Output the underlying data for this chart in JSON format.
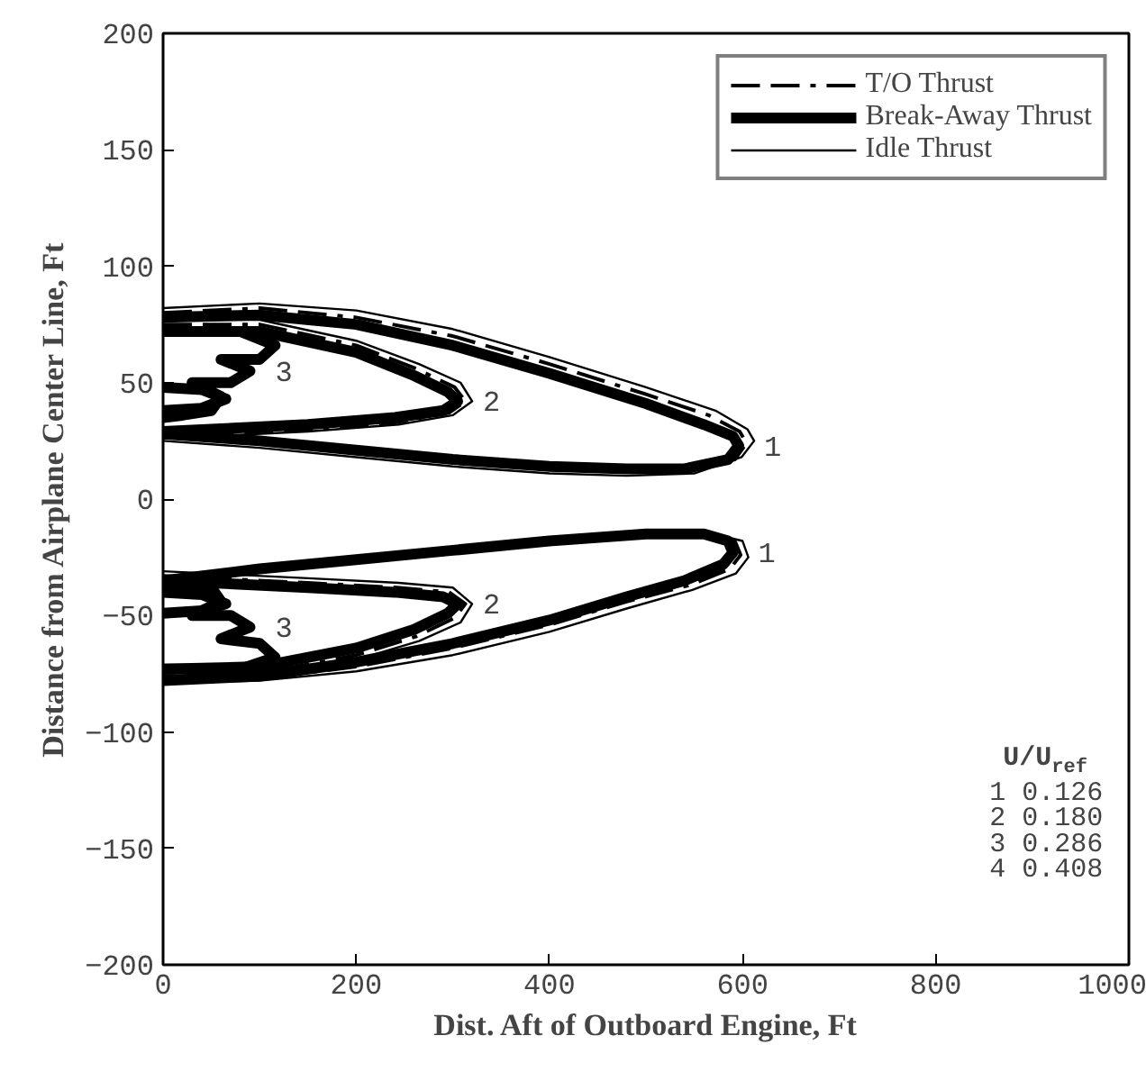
{
  "chart_data": {
    "type": "line",
    "xlabel": "Dist. Aft of Outboard Engine, Ft",
    "ylabel": "Distance from Airplane Center Line, Ft",
    "xlim": [
      0,
      1000
    ],
    "xticks": [
      0,
      200,
      400,
      600,
      800,
      1000
    ],
    "ylim": [
      -200,
      200
    ],
    "yticks": [
      -200,
      -150,
      -100,
      -50,
      0,
      50,
      100,
      150,
      200
    ],
    "grid": false,
    "legend": "top right",
    "series": [
      {
        "name": "T/O Thrust",
        "color": "#000000",
        "line_style": "dashed",
        "x": [
          0,
          100,
          200,
          300,
          400,
          500,
          565,
          597,
          604,
          592,
          545,
          480,
          400,
          300,
          200,
          100,
          0
        ],
        "values": [
          80,
          82,
          78,
          70,
          58,
          45,
          36,
          29,
          24,
          17,
          12,
          12,
          13,
          16,
          20,
          24,
          27
        ]
      },
      {
        "color": "#000000",
        "line_style": "dashed",
        "x": [
          0,
          100,
          200,
          300,
          400,
          500,
          565,
          592,
          598,
          587,
          545,
          480,
          400,
          300,
          200,
          100,
          0
        ],
        "values": [
          -35,
          -30,
          -26,
          -22,
          -18,
          -15,
          -15,
          -18,
          -24,
          -30,
          -37,
          -44,
          -54,
          -64,
          -72,
          -77,
          -78
        ]
      },
      {
        "color": "#000000",
        "line_style": "dashed",
        "x": [
          0,
          100,
          200,
          262,
          302,
          313,
          296,
          242,
          150,
          50,
          0
        ],
        "values": [
          75,
          75,
          66,
          56,
          48,
          42,
          37,
          33,
          30,
          28,
          27
        ]
      },
      {
        "color": "#000000",
        "line_style": "dashed",
        "x": [
          0,
          50,
          150,
          242,
          296,
          313,
          302,
          262,
          200,
          100,
          0
        ],
        "values": [
          -33,
          -34,
          -36,
          -38,
          -40,
          -45,
          -51,
          -59,
          -67,
          -75,
          -76
        ]
      },
      {
        "name": "Break-Away Thrust",
        "color": "#000000",
        "line_style": "solid",
        "x": [
          0,
          100,
          200,
          300,
          400,
          500,
          560,
          590,
          596,
          585,
          540,
          480,
          400,
          300,
          200,
          100,
          0
        ],
        "values": [
          78,
          79,
          75,
          66,
          54,
          41,
          32,
          27,
          23,
          17,
          13,
          13,
          14,
          17,
          21,
          25,
          28
        ]
      },
      {
        "color": "#000000",
        "line_style": "solid",
        "x": [
          0,
          100,
          200,
          300,
          400,
          500,
          560,
          585,
          590,
          580,
          540,
          480,
          400,
          300,
          200,
          100,
          0
        ],
        "values": [
          -35,
          -30,
          -26,
          -22,
          -18,
          -15,
          -15,
          -18,
          -23,
          -28,
          -35,
          -42,
          -52,
          -62,
          -70,
          -76,
          -78
        ]
      },
      {
        "color": "#000000",
        "line_style": "solid",
        "x": [
          0,
          100,
          200,
          260,
          295,
          305,
          290,
          240,
          150,
          50,
          0
        ],
        "values": [
          72,
          72,
          63,
          53,
          46,
          42,
          38,
          35,
          32,
          30,
          29
        ]
      },
      {
        "color": "#000000",
        "line_style": "solid",
        "x": [
          0,
          50,
          150,
          240,
          290,
          305,
          295,
          260,
          200,
          100,
          0
        ],
        "values": [
          -35,
          -36,
          -38,
          -40,
          -42,
          -45,
          -49,
          -56,
          -64,
          -72,
          -73
        ]
      },
      {
        "color": "#000000",
        "line_style": "solid",
        "x": [
          0,
          80,
          116,
          100,
          60,
          90,
          70,
          30,
          60,
          50,
          20,
          0
        ],
        "values": [
          72,
          72,
          66,
          60,
          60,
          55,
          50,
          50,
          44,
          38,
          36,
          35
        ]
      },
      {
        "color": "#000000",
        "line_style": "solid",
        "x": [
          0,
          50,
          60,
          30,
          70,
          90,
          60,
          100,
          116,
          80,
          0
        ],
        "values": [
          -36,
          -38,
          -44,
          -50,
          -50,
          -55,
          -60,
          -62,
          -68,
          -73,
          -73
        ]
      },
      {
        "color": "#000000",
        "line_style": "solid",
        "x": [
          0,
          40,
          65,
          40,
          0
        ],
        "values": [
          48,
          47,
          43,
          39,
          38
        ]
      },
      {
        "color": "#000000",
        "line_style": "solid",
        "x": [
          0,
          40,
          65,
          40,
          0
        ],
        "values": [
          -40,
          -41,
          -45,
          -48,
          -49
        ]
      },
      {
        "name": "Idle Thrust",
        "color": "#000000",
        "line_style": "solid",
        "x": [
          0,
          100,
          200,
          300,
          400,
          500,
          572,
          605,
          612,
          599,
          550,
          480,
          400,
          300,
          200,
          100,
          0
        ],
        "values": [
          82,
          84,
          81,
          73,
          61,
          48,
          38,
          30,
          25,
          18,
          11,
          10,
          11,
          14,
          18,
          22,
          25
        ]
      },
      {
        "color": "#000000",
        "line_style": "solid",
        "x": [
          0,
          100,
          200,
          300,
          400,
          500,
          570,
          600,
          606,
          593,
          548,
          480,
          400,
          300,
          200,
          100,
          0
        ],
        "values": [
          -35,
          -30,
          -26,
          -22,
          -18,
          -15,
          -15,
          -18,
          -25,
          -32,
          -39,
          -47,
          -57,
          -67,
          -74,
          -78,
          -79
        ]
      },
      {
        "color": "#000000",
        "line_style": "solid",
        "x": [
          0,
          100,
          200,
          265,
          308,
          320,
          300,
          244,
          150,
          50,
          0
        ],
        "values": [
          77,
          77,
          68,
          58,
          50,
          42,
          36,
          32,
          29,
          27,
          26
        ]
      },
      {
        "color": "#000000",
        "line_style": "solid",
        "x": [
          0,
          50,
          150,
          244,
          300,
          320,
          308,
          265,
          200,
          100,
          0
        ],
        "values": [
          -31,
          -32,
          -34,
          -36,
          -38,
          -45,
          -53,
          -61,
          -69,
          -77,
          -78
        ]
      }
    ],
    "annotations": [
      {
        "text": "1",
        "x": 596,
        "y": 23
      },
      {
        "text": "2",
        "x": 305,
        "y": 42
      },
      {
        "text": "3",
        "x": 90,
        "y": 55
      },
      {
        "text": "1",
        "x": 590,
        "y": -23
      },
      {
        "text": "2",
        "x": 305,
        "y": -45
      },
      {
        "text": "3",
        "x": 90,
        "y": -55
      },
      "U/U$_{ref}$",
      "1  0.126",
      "2  0.180",
      "3  0.286",
      "4  0.408"
    ]
  }
}
